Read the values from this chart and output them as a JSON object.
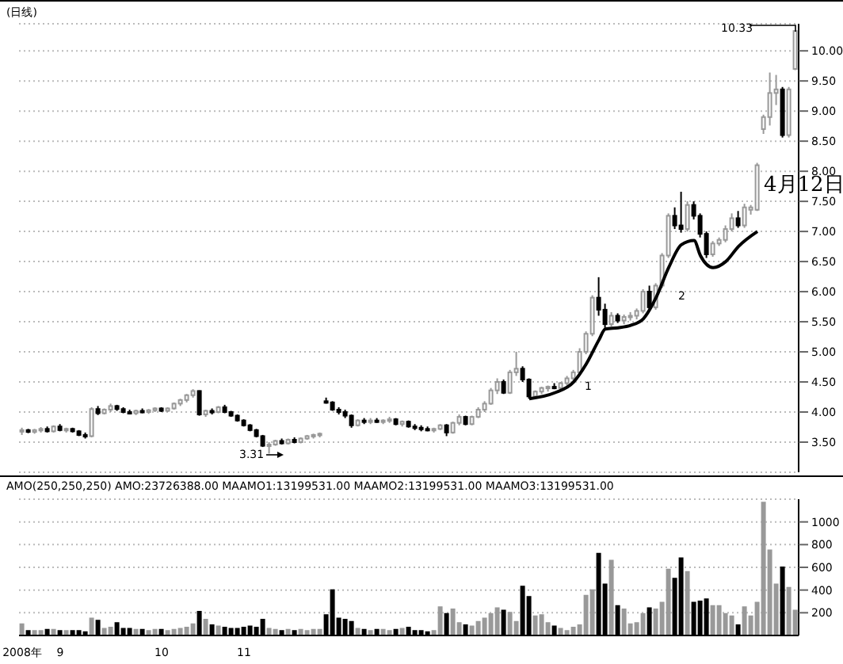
{
  "chart_data": [
    {
      "type": "candlestick",
      "title": "(日线)",
      "categories": [
        null,
        null,
        null,
        null,
        null,
        null,
        null,
        null,
        null,
        null,
        null,
        null,
        null,
        null,
        null,
        null,
        null,
        null,
        null,
        null,
        null,
        null,
        null,
        null,
        null,
        null,
        null,
        null,
        null,
        null,
        null,
        null,
        null,
        null,
        null,
        null,
        null,
        null,
        null,
        null,
        null,
        null,
        null,
        null,
        null,
        null,
        null,
        null,
        null,
        null,
        null,
        null,
        null,
        null,
        null,
        null,
        null,
        null,
        null,
        null,
        null,
        null,
        null,
        null,
        null,
        null,
        null,
        null,
        null,
        null,
        null,
        null,
        null,
        null,
        null,
        null,
        null,
        null,
        null,
        null,
        null,
        null,
        null,
        null,
        null,
        null,
        null,
        null,
        null,
        null,
        null,
        null,
        null,
        null,
        null,
        null,
        null,
        null,
        null,
        null,
        null,
        null,
        null,
        null,
        null,
        null,
        null,
        null,
        null,
        null,
        null,
        null,
        null,
        null,
        null,
        null,
        null,
        null,
        null,
        null,
        null,
        null,
        null
      ],
      "ohlc": [
        [
          3.68,
          3.74,
          3.62,
          3.7
        ],
        [
          3.7,
          3.72,
          3.65,
          3.67
        ],
        [
          3.67,
          3.72,
          3.64,
          3.7
        ],
        [
          3.7,
          3.75,
          3.66,
          3.72
        ],
        [
          3.72,
          3.76,
          3.66,
          3.68
        ],
        [
          3.68,
          3.78,
          3.66,
          3.76
        ],
        [
          3.76,
          3.8,
          3.68,
          3.7
        ],
        [
          3.7,
          3.74,
          3.66,
          3.72
        ],
        [
          3.72,
          3.74,
          3.66,
          3.68
        ],
        [
          3.68,
          3.7,
          3.6,
          3.62
        ],
        [
          3.62,
          3.66,
          3.56,
          3.6
        ],
        [
          3.6,
          4.08,
          3.58,
          4.05
        ],
        [
          4.05,
          4.1,
          3.95,
          3.98
        ],
        [
          3.98,
          4.06,
          3.96,
          4.04
        ],
        [
          4.04,
          4.14,
          4.0,
          4.1
        ],
        [
          4.1,
          4.12,
          4.02,
          4.05
        ],
        [
          4.05,
          4.08,
          3.98,
          4.0
        ],
        [
          4.0,
          4.04,
          3.96,
          3.98
        ],
        [
          3.98,
          4.04,
          3.95,
          4.02
        ],
        [
          4.02,
          4.06,
          3.98,
          4.0
        ],
        [
          4.0,
          4.05,
          3.97,
          4.03
        ],
        [
          4.03,
          4.08,
          4.0,
          4.06
        ],
        [
          4.06,
          4.08,
          4.0,
          4.02
        ],
        [
          4.02,
          4.08,
          4.0,
          4.06
        ],
        [
          4.06,
          4.16,
          4.04,
          4.14
        ],
        [
          4.14,
          4.22,
          4.1,
          4.2
        ],
        [
          4.2,
          4.3,
          4.16,
          4.28
        ],
        [
          4.28,
          4.38,
          4.24,
          4.35
        ],
        [
          4.35,
          4.36,
          3.94,
          3.96
        ],
        [
          3.96,
          4.04,
          3.92,
          4.02
        ],
        [
          4.02,
          4.06,
          3.96,
          4.0
        ],
        [
          4.0,
          4.1,
          3.98,
          4.08
        ],
        [
          4.08,
          4.12,
          3.98,
          4.0
        ],
        [
          4.0,
          4.02,
          3.92,
          3.94
        ],
        [
          3.94,
          3.96,
          3.84,
          3.86
        ],
        [
          3.86,
          3.88,
          3.76,
          3.78
        ],
        [
          3.78,
          3.8,
          3.68,
          3.7
        ],
        [
          3.7,
          3.72,
          3.58,
          3.6
        ],
        [
          3.6,
          3.62,
          3.42,
          3.44
        ],
        [
          3.44,
          3.5,
          3.31,
          3.46
        ],
        [
          3.46,
          3.54,
          3.44,
          3.52
        ],
        [
          3.52,
          3.56,
          3.46,
          3.48
        ],
        [
          3.48,
          3.56,
          3.46,
          3.54
        ],
        [
          3.54,
          3.58,
          3.48,
          3.5
        ],
        [
          3.5,
          3.58,
          3.48,
          3.56
        ],
        [
          3.56,
          3.62,
          3.54,
          3.6
        ],
        [
          3.6,
          3.64,
          3.56,
          3.62
        ],
        [
          3.62,
          3.66,
          3.58,
          3.64
        ],
        [
          4.18,
          4.24,
          4.14,
          4.16
        ],
        [
          4.16,
          4.18,
          4.02,
          4.04
        ],
        [
          4.04,
          4.08,
          3.96,
          4.0
        ],
        [
          4.0,
          4.04,
          3.9,
          3.94
        ],
        [
          3.94,
          3.96,
          3.74,
          3.78
        ],
        [
          3.78,
          3.88,
          3.76,
          3.86
        ],
        [
          3.86,
          3.9,
          3.8,
          3.84
        ],
        [
          3.84,
          3.9,
          3.8,
          3.86
        ],
        [
          3.86,
          3.9,
          3.82,
          3.84
        ],
        [
          3.84,
          3.88,
          3.8,
          3.86
        ],
        [
          3.86,
          3.92,
          3.82,
          3.88
        ],
        [
          3.88,
          3.9,
          3.78,
          3.8
        ],
        [
          3.8,
          3.86,
          3.76,
          3.84
        ],
        [
          3.84,
          3.86,
          3.74,
          3.76
        ],
        [
          3.76,
          3.8,
          3.7,
          3.74
        ],
        [
          3.74,
          3.78,
          3.68,
          3.72
        ],
        [
          3.72,
          3.76,
          3.68,
          3.7
        ],
        [
          3.7,
          3.74,
          3.66,
          3.72
        ],
        [
          3.72,
          3.8,
          3.7,
          3.78
        ],
        [
          3.78,
          3.8,
          3.6,
          3.66
        ],
        [
          3.66,
          3.84,
          3.64,
          3.82
        ],
        [
          3.82,
          3.96,
          3.78,
          3.92
        ],
        [
          3.92,
          3.94,
          3.78,
          3.8
        ],
        [
          3.8,
          3.94,
          3.78,
          3.92
        ],
        [
          3.92,
          4.08,
          3.9,
          4.04
        ],
        [
          4.04,
          4.18,
          4.0,
          4.14
        ],
        [
          4.14,
          4.4,
          4.12,
          4.36
        ],
        [
          4.36,
          4.56,
          4.3,
          4.5
        ],
        [
          4.5,
          4.54,
          4.3,
          4.32
        ],
        [
          4.32,
          4.7,
          4.3,
          4.66
        ],
        [
          4.66,
          5.0,
          4.6,
          4.72
        ],
        [
          4.72,
          4.76,
          4.5,
          4.54
        ],
        [
          4.54,
          4.56,
          4.22,
          4.26
        ],
        [
          4.26,
          4.36,
          4.22,
          4.34
        ],
        [
          4.34,
          4.42,
          4.3,
          4.4
        ],
        [
          4.4,
          4.44,
          4.34,
          4.42
        ],
        [
          4.42,
          4.48,
          4.38,
          4.4
        ],
        [
          4.4,
          4.5,
          4.38,
          4.48
        ],
        [
          4.48,
          4.6,
          4.44,
          4.56
        ],
        [
          4.56,
          4.7,
          4.52,
          4.66
        ],
        [
          4.66,
          5.06,
          4.64,
          5.0
        ],
        [
          5.0,
          5.34,
          4.96,
          5.3
        ],
        [
          5.3,
          5.94,
          5.26,
          5.9
        ],
        [
          5.9,
          6.24,
          5.6,
          5.7
        ],
        [
          5.7,
          5.8,
          5.4,
          5.46
        ],
        [
          5.46,
          5.66,
          5.42,
          5.6
        ],
        [
          5.6,
          5.64,
          5.48,
          5.52
        ],
        [
          5.52,
          5.62,
          5.46,
          5.58
        ],
        [
          5.58,
          5.66,
          5.52,
          5.6
        ],
        [
          5.6,
          5.72,
          5.54,
          5.68
        ],
        [
          5.68,
          6.04,
          5.64,
          6.0
        ],
        [
          6.0,
          6.1,
          5.7,
          5.74
        ],
        [
          5.74,
          6.14,
          5.7,
          6.1
        ],
        [
          6.1,
          6.64,
          6.06,
          6.6
        ],
        [
          6.6,
          7.3,
          6.56,
          7.26
        ],
        [
          7.26,
          7.4,
          7.04,
          7.1
        ],
        [
          7.1,
          7.66,
          6.98,
          7.04
        ],
        [
          7.04,
          7.5,
          7.0,
          7.44
        ],
        [
          7.44,
          7.5,
          7.2,
          7.26
        ],
        [
          7.26,
          7.3,
          6.9,
          6.96
        ],
        [
          6.96,
          7.0,
          6.56,
          6.62
        ],
        [
          6.62,
          6.84,
          6.58,
          6.8
        ],
        [
          6.8,
          6.9,
          6.76,
          6.86
        ],
        [
          6.86,
          7.1,
          6.82,
          7.04
        ],
        [
          7.04,
          7.3,
          7.0,
          7.22
        ],
        [
          7.22,
          7.34,
          7.06,
          7.1
        ],
        [
          7.1,
          7.46,
          7.06,
          7.4
        ],
        [
          7.36,
          7.44,
          7.28,
          7.4
        ],
        [
          7.36,
          8.14,
          7.34,
          8.1
        ],
        [
          8.7,
          8.94,
          8.62,
          8.9
        ],
        [
          8.9,
          9.64,
          8.76,
          9.3
        ],
        [
          9.3,
          9.6,
          9.1,
          9.36
        ],
        [
          9.36,
          9.4,
          8.56,
          8.6
        ],
        [
          8.6,
          9.4,
          8.56,
          9.36
        ],
        [
          9.7,
          10.33,
          9.68,
          10.33
        ]
      ],
      "colors": [
        "#999999",
        "#000000",
        "#999999",
        "#999999",
        "#000000",
        "#999999",
        "#000000",
        "#999999",
        "#000000",
        "#000000",
        "#000000",
        "#999999",
        "#000000",
        "#999999",
        "#999999",
        "#000000",
        "#000000",
        "#000000",
        "#999999",
        "#000000",
        "#999999",
        "#999999",
        "#000000",
        "#999999",
        "#999999",
        "#999999",
        "#999999",
        "#999999",
        "#000000",
        "#999999",
        "#000000",
        "#999999",
        "#000000",
        "#000000",
        "#000000",
        "#000000",
        "#000000",
        "#000000",
        "#000000",
        "#999999",
        "#999999",
        "#000000",
        "#999999",
        "#000000",
        "#999999",
        "#999999",
        "#999999",
        "#999999",
        "#000000",
        "#000000",
        "#000000",
        "#000000",
        "#000000",
        "#999999",
        "#000000",
        "#999999",
        "#000000",
        "#999999",
        "#999999",
        "#000000",
        "#999999",
        "#000000",
        "#000000",
        "#000000",
        "#000000",
        "#999999",
        "#999999",
        "#000000",
        "#999999",
        "#999999",
        "#000000",
        "#999999",
        "#999999",
        "#999999",
        "#999999",
        "#999999",
        "#000000",
        "#999999",
        "#999999",
        "#000000",
        "#000000",
        "#999999",
        "#999999",
        "#999999",
        "#000000",
        "#999999",
        "#999999",
        "#999999",
        "#999999",
        "#999999",
        "#999999",
        "#000000",
        "#000000",
        "#999999",
        "#000000",
        "#999999",
        "#999999",
        "#999999",
        "#999999",
        "#000000",
        "#999999",
        "#999999",
        "#999999",
        "#000000",
        "#000000",
        "#999999",
        "#000000",
        "#000000",
        "#000000",
        "#999999",
        "#999999",
        "#999999",
        "#999999",
        "#000000",
        "#999999",
        "#999999",
        "#999999",
        "#999999",
        "#999999",
        "#999999",
        "#000000",
        "#999999",
        "#999999"
      ],
      "series": [
        {
          "type": "line",
          "color": "#000000",
          "values": [
            null,
            null,
            null,
            null,
            null,
            null,
            null,
            null,
            null,
            null,
            null,
            null,
            null,
            null,
            null,
            null,
            null,
            null,
            null,
            null,
            null,
            null,
            null,
            null,
            null,
            null,
            null,
            null,
            null,
            null,
            null,
            null,
            null,
            null,
            null,
            null,
            null,
            null,
            null,
            null,
            null,
            null,
            null,
            null,
            null,
            null,
            null,
            null,
            null,
            null,
            null,
            null,
            null,
            null,
            null,
            null,
            null,
            null,
            null,
            null,
            null,
            null,
            null,
            null,
            null,
            null,
            null,
            null,
            null,
            null,
            null,
            null,
            null,
            null,
            null,
            null,
            null,
            null,
            null,
            null,
            4.22,
            null,
            null,
            null,
            4.32,
            null,
            null,
            4.5,
            null,
            4.8,
            null,
            5.2,
            5.38,
            null,
            5.4,
            null,
            5.44,
            null,
            5.55,
            null,
            5.9,
            null,
            6.4,
            null,
            6.78,
            null,
            6.85,
            6.6,
            null,
            6.4,
            null,
            6.5,
            null,
            6.75,
            null,
            null,
            7.0,
            null,
            null,
            null,
            null,
            null,
            null
          ]
        }
      ],
      "annotations": [
        "3.31",
        "1",
        "2",
        "4月12日",
        "10.33"
      ],
      "ylim": [
        3.0,
        10.45
      ],
      "yticks": [
        {
          "value": 3.5,
          "label": "3.50"
        },
        {
          "value": 4,
          "label": "4.00"
        },
        {
          "value": 4.5,
          "label": "4.50"
        },
        {
          "value": 5,
          "label": "5.00"
        },
        {
          "value": 5.5,
          "label": "5.50"
        },
        {
          "value": 6,
          "label": "6.00"
        },
        {
          "value": 6.5,
          "label": "6.50"
        },
        {
          "value": 7,
          "label": "7.00"
        },
        {
          "value": 7.5,
          "label": "7.50"
        },
        {
          "value": 8,
          "label": "8.00"
        },
        {
          "value": 8.5,
          "label": "8.50"
        },
        {
          "value": 9,
          "label": "9.00"
        },
        {
          "value": 9.5,
          "label": "9.50"
        },
        {
          "value": 10,
          "label": "10.00"
        }
      ],
      "grid": "y",
      "tick_labels": "y"
    },
    {
      "type": "bar",
      "title": "AMO(250,250,250) AMO:23726388.00 MAAMO1:13199531.00 MAAMO2:13199531.00 MAAMO3:13199531.00",
      "categories": [
        "2008年",
        null,
        null,
        null,
        null,
        null,
        "9",
        null,
        null,
        null,
        null,
        null,
        null,
        null,
        null,
        null,
        null,
        null,
        null,
        null,
        null,
        null,
        "10",
        null,
        null,
        null,
        null,
        null,
        null,
        null,
        null,
        null,
        null,
        null,
        null,
        "11",
        null,
        null,
        null,
        null,
        null,
        null,
        null,
        null,
        null,
        null,
        null,
        null,
        null,
        null,
        null,
        null,
        null,
        null,
        null,
        null,
        null,
        null,
        null,
        null,
        null,
        null,
        null,
        null,
        null,
        null,
        null,
        null,
        null,
        null,
        null,
        null,
        null,
        null,
        null,
        null,
        null,
        null,
        null,
        null,
        null,
        null,
        null,
        null,
        null,
        null,
        null,
        null,
        null,
        null,
        null,
        null,
        null,
        null,
        null,
        null,
        null,
        null,
        null,
        null,
        null,
        null,
        null,
        null,
        null,
        null,
        null,
        null,
        null,
        null,
        null,
        null,
        null,
        null,
        null,
        null,
        null,
        null,
        null,
        null,
        null,
        null,
        null
      ],
      "values": [
        100,
        40,
        40,
        40,
        50,
        50,
        40,
        40,
        40,
        40,
        30,
        150,
        130,
        60,
        70,
        110,
        60,
        60,
        50,
        50,
        40,
        50,
        50,
        40,
        50,
        60,
        70,
        100,
        210,
        140,
        90,
        80,
        70,
        60,
        60,
        70,
        80,
        70,
        140,
        60,
        50,
        40,
        50,
        40,
        50,
        40,
        50,
        50,
        180,
        400,
        150,
        140,
        120,
        60,
        50,
        40,
        50,
        50,
        40,
        50,
        60,
        70,
        40,
        40,
        30,
        40,
        250,
        190,
        230,
        110,
        90,
        80,
        120,
        150,
        190,
        240,
        220,
        200,
        120,
        430,
        340,
        170,
        180,
        110,
        80,
        60,
        40,
        70,
        90,
        350,
        400,
        720,
        450,
        660,
        260,
        230,
        100,
        110,
        190,
        240,
        230,
        290,
        580,
        500,
        680,
        560,
        290,
        300,
        320,
        260,
        260,
        190,
        170,
        90,
        250,
        170,
        290,
        1170,
        750,
        450,
        600,
        420,
        220
      ],
      "colors": [
        "#999999",
        "#000000",
        "#999999",
        "#999999",
        "#000000",
        "#999999",
        "#000000",
        "#999999",
        "#000000",
        "#000000",
        "#000000",
        "#999999",
        "#000000",
        "#999999",
        "#999999",
        "#000000",
        "#000000",
        "#000000",
        "#999999",
        "#000000",
        "#999999",
        "#999999",
        "#000000",
        "#999999",
        "#999999",
        "#999999",
        "#999999",
        "#999999",
        "#000000",
        "#999999",
        "#000000",
        "#999999",
        "#000000",
        "#000000",
        "#000000",
        "#000000",
        "#000000",
        "#000000",
        "#000000",
        "#999999",
        "#999999",
        "#000000",
        "#999999",
        "#000000",
        "#999999",
        "#999999",
        "#999999",
        "#999999",
        "#000000",
        "#000000",
        "#000000",
        "#000000",
        "#000000",
        "#999999",
        "#000000",
        "#999999",
        "#000000",
        "#999999",
        "#999999",
        "#000000",
        "#999999",
        "#000000",
        "#000000",
        "#000000",
        "#000000",
        "#999999",
        "#999999",
        "#000000",
        "#999999",
        "#999999",
        "#000000",
        "#999999",
        "#999999",
        "#999999",
        "#999999",
        "#999999",
        "#000000",
        "#999999",
        "#999999",
        "#000000",
        "#000000",
        "#999999",
        "#999999",
        "#999999",
        "#000000",
        "#999999",
        "#999999",
        "#999999",
        "#999999",
        "#999999",
        "#999999",
        "#000000",
        "#000000",
        "#999999",
        "#000000",
        "#999999",
        "#999999",
        "#999999",
        "#999999",
        "#000000",
        "#999999",
        "#999999",
        "#999999",
        "#000000",
        "#000000",
        "#999999",
        "#000000",
        "#000000",
        "#000000",
        "#999999",
        "#999999",
        "#999999",
        "#999999",
        "#000000",
        "#999999",
        "#999999",
        "#999999",
        "#999999",
        "#999999",
        "#999999",
        "#000000",
        "#999999",
        "#999999"
      ],
      "ylim": [
        0,
        1200
      ],
      "yticks": [
        200,
        400,
        600,
        800,
        1000
      ],
      "grid": "y"
    }
  ]
}
